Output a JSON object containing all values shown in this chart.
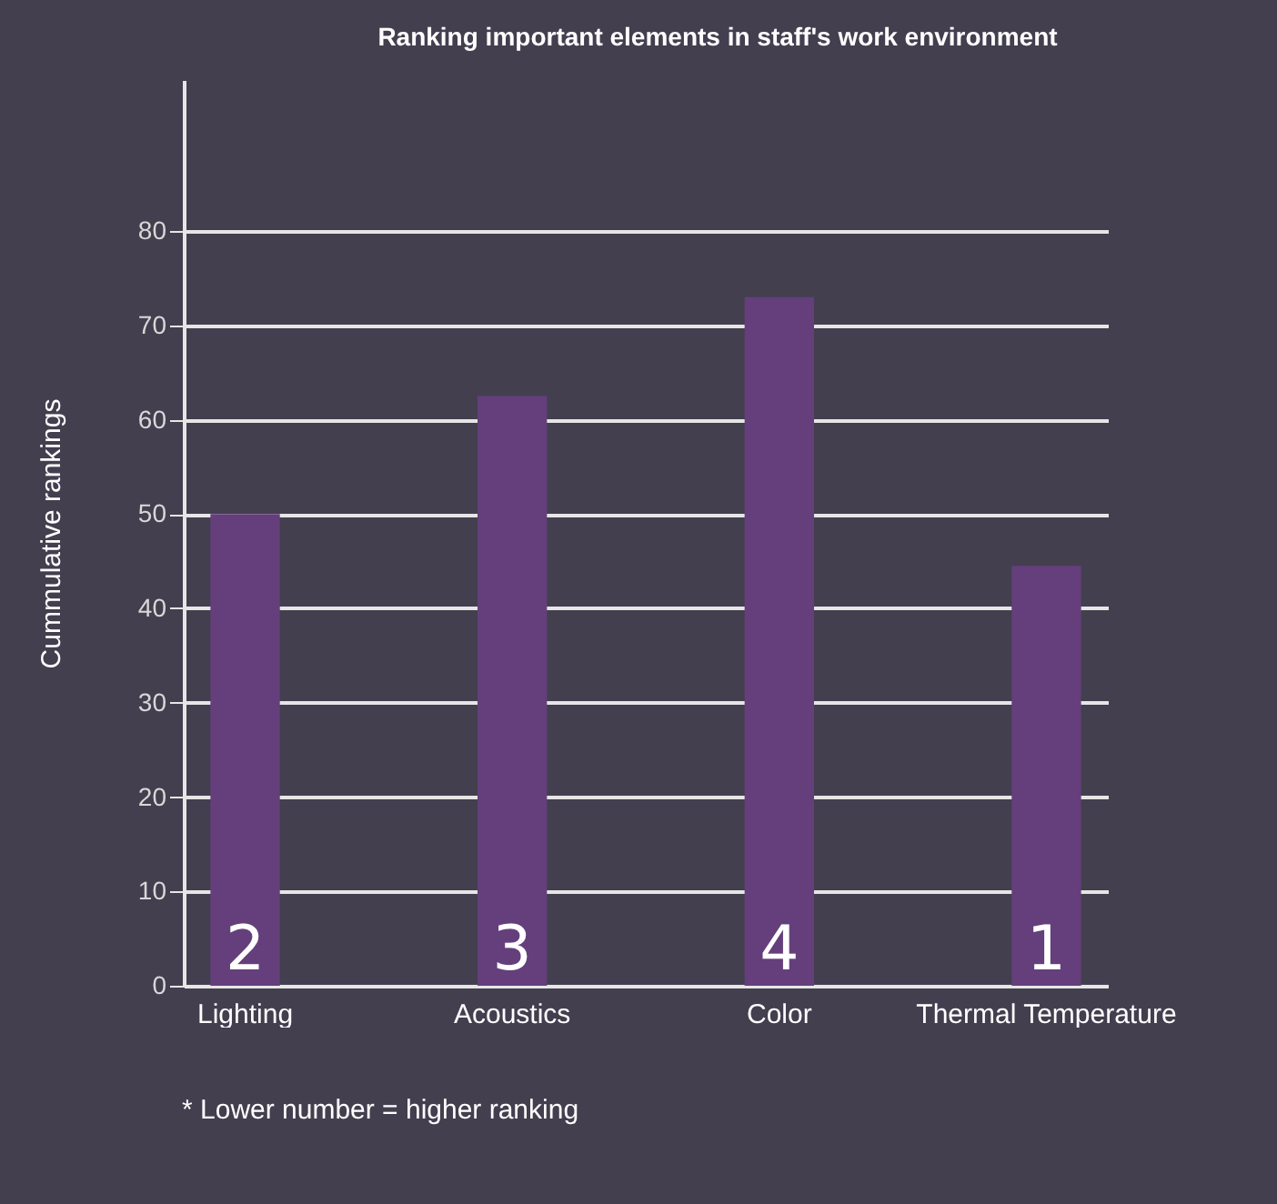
{
  "chart_data": {
    "type": "bar",
    "title": "Ranking important elements in staff's work environment",
    "ylabel": "Cummulative rankings",
    "categories": [
      "Lighting",
      "Acoustics",
      "Color",
      "Thermal Temperature"
    ],
    "values": [
      50,
      62.5,
      73,
      44.5
    ],
    "color": "#643f7c",
    "ylim": [
      0,
      96
    ],
    "yticks": [
      0,
      10,
      20,
      30,
      40,
      50,
      60,
      70,
      80
    ],
    "grid": "y",
    "annotations": [
      "2",
      "3",
      "4",
      "1",
      "* Lower number = higher ranking"
    ]
  }
}
